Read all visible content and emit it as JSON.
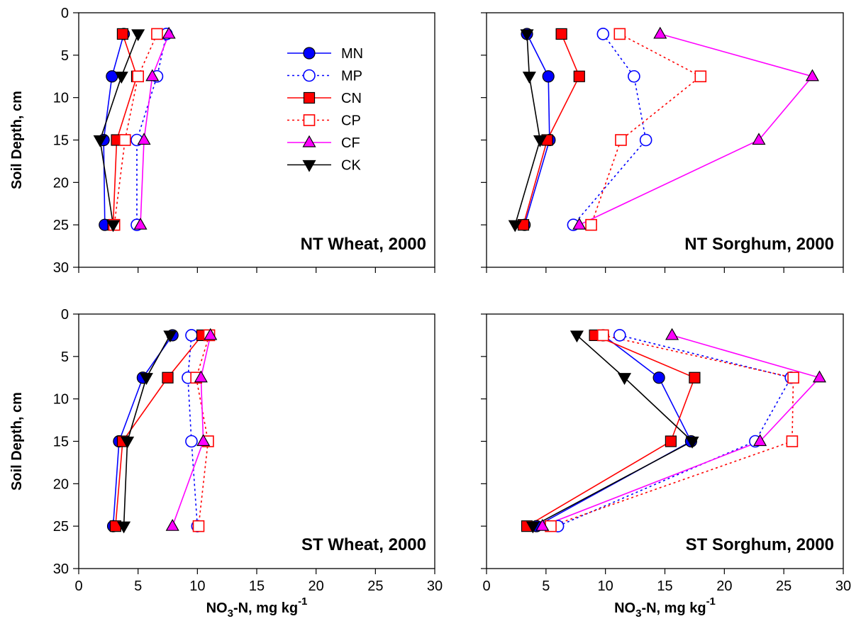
{
  "chart_data": [
    {
      "type": "line",
      "title": "NT Wheat, 2000",
      "xlabel_main": "",
      "xlabel_sub": "",
      "xlabel_tail": "",
      "xlabel_sup": "",
      "ylabel": "Soil Depth, cm",
      "xlim": [
        0,
        30
      ],
      "ylim": [
        0,
        30
      ],
      "y_inverted": true,
      "xticks": [],
      "yticks": [
        0,
        5,
        10,
        15,
        20,
        25,
        30
      ],
      "depths": [
        2.5,
        7.5,
        15,
        25
      ],
      "series": [
        {
          "name": "MN",
          "values": [
            3.8,
            2.8,
            2.1,
            2.2
          ]
        },
        {
          "name": "MP",
          "values": [
            7.4,
            6.6,
            4.9,
            4.9
          ]
        },
        {
          "name": "CN",
          "values": [
            3.7,
            4.9,
            3.2,
            2.9
          ]
        },
        {
          "name": "CP",
          "values": [
            6.6,
            5.0,
            3.9,
            3.0
          ]
        },
        {
          "name": "CF",
          "values": [
            7.6,
            6.2,
            5.5,
            5.2
          ]
        },
        {
          "name": "CK",
          "values": [
            5.0,
            3.6,
            1.8,
            2.9
          ]
        }
      ]
    },
    {
      "type": "line",
      "title": "NT Sorghum, 2000",
      "xlabel_main": "",
      "xlabel_sub": "",
      "xlabel_tail": "",
      "xlabel_sup": "",
      "ylabel": "",
      "xlim": [
        0,
        30
      ],
      "ylim": [
        0,
        30
      ],
      "y_inverted": true,
      "xticks": [],
      "yticks": [],
      "depths": [
        2.5,
        7.5,
        15,
        25
      ],
      "series": [
        {
          "name": "MN",
          "values": [
            3.4,
            5.2,
            5.3,
            3.2
          ]
        },
        {
          "name": "MP",
          "values": [
            9.8,
            12.4,
            13.4,
            7.3
          ]
        },
        {
          "name": "CN",
          "values": [
            6.3,
            7.8,
            5.1,
            3.1
          ]
        },
        {
          "name": "CP",
          "values": [
            11.2,
            18.0,
            11.3,
            8.8
          ]
        },
        {
          "name": "CF",
          "values": [
            14.6,
            27.4,
            22.9,
            7.8
          ]
        },
        {
          "name": "CK",
          "values": [
            3.4,
            3.6,
            4.5,
            2.4
          ]
        }
      ]
    },
    {
      "type": "line",
      "title": "ST Wheat, 2000",
      "xlabel_main": "NO",
      "xlabel_sub": "3",
      "xlabel_tail": "-N, mg kg",
      "xlabel_sup": "-1",
      "ylabel": "Soil Depth, cm",
      "xlim": [
        0,
        30
      ],
      "ylim": [
        0,
        30
      ],
      "y_inverted": true,
      "xticks": [
        0,
        5,
        10,
        15,
        20,
        25,
        30
      ],
      "yticks": [
        0,
        5,
        10,
        15,
        20,
        25,
        30
      ],
      "depths": [
        2.5,
        7.5,
        15,
        25
      ],
      "series": [
        {
          "name": "MN",
          "values": [
            7.9,
            5.4,
            3.4,
            2.9
          ]
        },
        {
          "name": "MP",
          "values": [
            9.5,
            9.2,
            9.5,
            10.0
          ]
        },
        {
          "name": "CN",
          "values": [
            10.4,
            7.5,
            3.7,
            3.1
          ]
        },
        {
          "name": "CP",
          "values": [
            11.0,
            9.9,
            10.9,
            10.1
          ]
        },
        {
          "name": "CF",
          "values": [
            11.1,
            10.3,
            10.5,
            7.9
          ]
        },
        {
          "name": "CK",
          "values": [
            7.7,
            5.7,
            4.1,
            3.8
          ]
        }
      ]
    },
    {
      "type": "line",
      "title": "ST Sorghum, 2000",
      "xlabel_main": "NO",
      "xlabel_sub": "3",
      "xlabel_tail": "-N, mg kg",
      "xlabel_sup": "-1",
      "ylabel": "",
      "xlim": [
        0,
        30
      ],
      "ylim": [
        0,
        30
      ],
      "y_inverted": true,
      "xticks": [
        0,
        5,
        10,
        15,
        20,
        25,
        30
      ],
      "yticks": [],
      "depths": [
        2.5,
        7.5,
        15,
        25
      ],
      "series": [
        {
          "name": "MN",
          "values": [
            9.8,
            14.5,
            17.2,
            4.2
          ]
        },
        {
          "name": "MP",
          "values": [
            11.2,
            25.6,
            22.6,
            6.0
          ]
        },
        {
          "name": "CN",
          "values": [
            9.1,
            17.5,
            15.5,
            3.4
          ]
        },
        {
          "name": "CP",
          "values": [
            9.8,
            25.8,
            25.7,
            5.4
          ]
        },
        {
          "name": "CF",
          "values": [
            15.6,
            28.0,
            23.0,
            4.7
          ]
        },
        {
          "name": "CK",
          "values": [
            7.6,
            11.6,
            17.3,
            3.9
          ]
        }
      ]
    }
  ],
  "legend": {
    "location": "inside top-left panel, right of data",
    "entries": [
      "MN",
      "MP",
      "CN",
      "CP",
      "CF",
      "CK"
    ]
  },
  "series_styles": {
    "MN": {
      "color": "#0000ff",
      "marker": "circle-filled",
      "line": "solid"
    },
    "MP": {
      "color": "#0000ff",
      "marker": "circle-open",
      "line": "dotted"
    },
    "CN": {
      "color": "#ff0000",
      "marker": "square-filled",
      "line": "solid"
    },
    "CP": {
      "color": "#ff0000",
      "marker": "square-open",
      "line": "dotted"
    },
    "CF": {
      "color": "#ff00ff",
      "marker": "triangle-up-filled",
      "line": "solid"
    },
    "CK": {
      "color": "#000000",
      "marker": "triangle-down-filled",
      "line": "solid"
    }
  }
}
